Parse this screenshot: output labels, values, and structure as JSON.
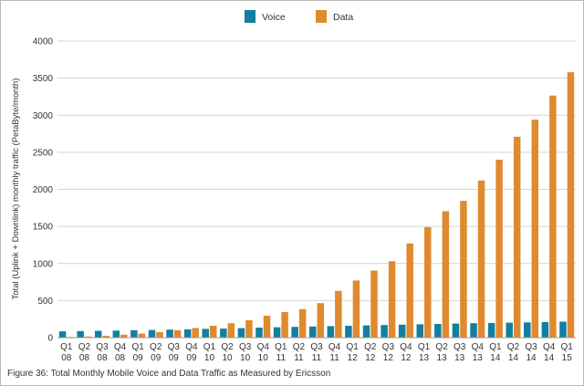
{
  "chart_data": {
    "type": "bar",
    "title": "",
    "xlabel": "",
    "ylabel": "Total (Uplink + Downlink) monthly traffic (PetaByte/month)",
    "ylim": [
      0,
      4000
    ],
    "yticks": [
      "0",
      "500",
      "1000",
      "1500",
      "2000",
      "2500",
      "3000",
      "3500",
      "4000"
    ],
    "grid": true,
    "legend_position": "top-center",
    "categories": [
      {
        "q": "Q1",
        "y": "08"
      },
      {
        "q": "Q2",
        "y": "08"
      },
      {
        "q": "Q3",
        "y": "08"
      },
      {
        "q": "Q4",
        "y": "08"
      },
      {
        "q": "Q1",
        "y": "09"
      },
      {
        "q": "Q2",
        "y": "09"
      },
      {
        "q": "Q3",
        "y": "09"
      },
      {
        "q": "Q4",
        "y": "09"
      },
      {
        "q": "Q1",
        "y": "10"
      },
      {
        "q": "Q2",
        "y": "10"
      },
      {
        "q": "Q3",
        "y": "10"
      },
      {
        "q": "Q4",
        "y": "10"
      },
      {
        "q": "Q1",
        "y": "11"
      },
      {
        "q": "Q2",
        "y": "11"
      },
      {
        "q": "Q3",
        "y": "11"
      },
      {
        "q": "Q4",
        "y": "11"
      },
      {
        "q": "Q1",
        "y": "12"
      },
      {
        "q": "Q2",
        "y": "12"
      },
      {
        "q": "Q3",
        "y": "12"
      },
      {
        "q": "Q4",
        "y": "12"
      },
      {
        "q": "Q1",
        "y": "13"
      },
      {
        "q": "Q2",
        "y": "13"
      },
      {
        "q": "Q3",
        "y": "13"
      },
      {
        "q": "Q4",
        "y": "13"
      },
      {
        "q": "Q1",
        "y": "14"
      },
      {
        "q": "Q2",
        "y": "14"
      },
      {
        "q": "Q3",
        "y": "14"
      },
      {
        "q": "Q4",
        "y": "14"
      },
      {
        "q": "Q1",
        "y": "15"
      }
    ],
    "series": [
      {
        "name": "Voice",
        "color": "#127fa0",
        "values": [
          85,
          88,
          92,
          95,
          100,
          103,
          108,
          112,
          118,
          122,
          128,
          135,
          140,
          145,
          150,
          155,
          160,
          165,
          170,
          175,
          180,
          185,
          190,
          195,
          198,
          202,
          206,
          210,
          215
        ]
      },
      {
        "name": "Data",
        "color": "#e08a30",
        "values": [
          10,
          15,
          25,
          40,
          55,
          75,
          100,
          130,
          160,
          195,
          235,
          295,
          345,
          385,
          465,
          630,
          770,
          905,
          1030,
          1270,
          1490,
          1705,
          1845,
          2120,
          2400,
          2710,
          2940,
          3265,
          3580
        ]
      }
    ]
  },
  "caption": "Figure 36: Total Monthly Mobile Voice and Data Traffic as Measured by Ericsson"
}
